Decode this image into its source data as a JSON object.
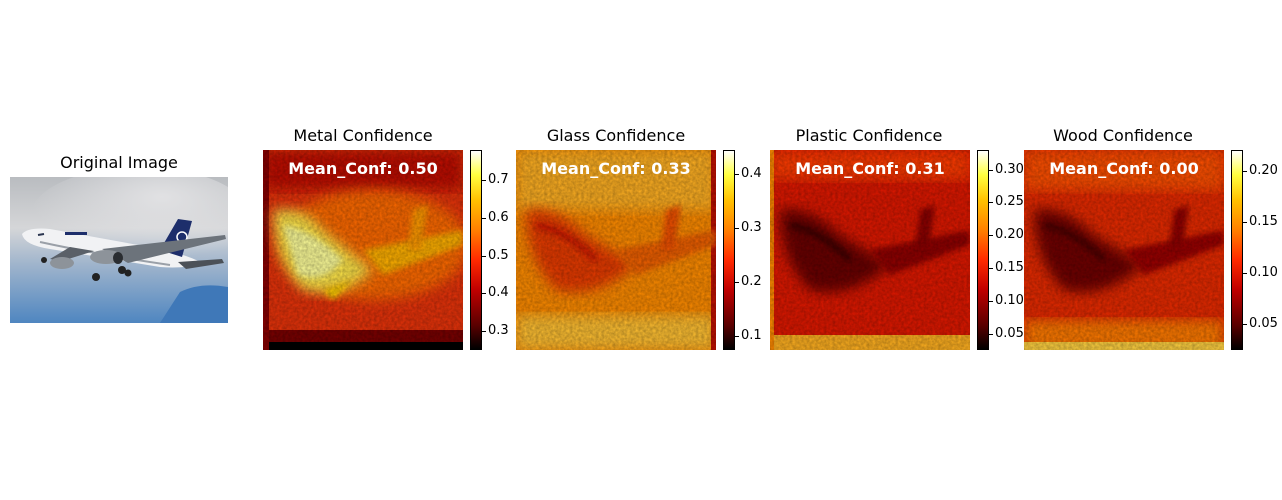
{
  "chart_data": [
    {
      "type": "heatmap",
      "title": "Original Image",
      "image": "airplane-photo"
    },
    {
      "type": "heatmap",
      "title": "Metal Confidence",
      "annotation": "Mean_Conf: 0.50",
      "colormap": "hot",
      "colorbar_range": [
        0.25,
        0.78
      ],
      "colorbar_ticks": [
        0.3,
        0.4,
        0.5,
        0.6,
        0.7
      ],
      "colorbar_tick_labels": [
        "0.3",
        "0.4",
        "0.5",
        "0.6",
        "0.7"
      ]
    },
    {
      "type": "heatmap",
      "title": "Glass Confidence",
      "annotation": "Mean_Conf: 0.33",
      "colormap": "hot",
      "colorbar_range": [
        0.075,
        0.445
      ],
      "colorbar_ticks": [
        0.1,
        0.2,
        0.3,
        0.4
      ],
      "colorbar_tick_labels": [
        "0.1",
        "0.2",
        "0.3",
        "0.4"
      ]
    },
    {
      "type": "heatmap",
      "title": "Plastic Confidence",
      "annotation": "Mean_Conf: 0.31",
      "colormap": "hot",
      "colorbar_range": [
        0.025,
        0.33
      ],
      "colorbar_ticks": [
        0.05,
        0.1,
        0.15,
        0.2,
        0.25,
        0.3
      ],
      "colorbar_tick_labels": [
        "0.05",
        "0.10",
        "0.15",
        "0.20",
        "0.25",
        "0.30"
      ]
    },
    {
      "type": "heatmap",
      "title": "Wood Confidence",
      "annotation": "Mean_Conf: 0.00",
      "colormap": "hot",
      "colorbar_range": [
        0.025,
        0.22
      ],
      "colorbar_ticks": [
        0.05,
        0.1,
        0.15,
        0.2
      ],
      "colorbar_tick_labels": [
        "0.05",
        "0.10",
        "0.15",
        "0.20"
      ]
    }
  ]
}
